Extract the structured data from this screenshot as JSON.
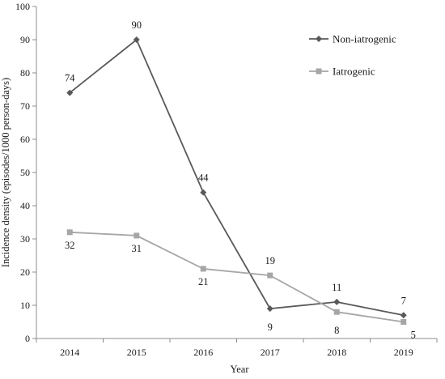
{
  "chart_data": {
    "type": "line",
    "xlabel": "Year",
    "ylabel": "Incidence density (episodes/1000 person-days)",
    "categories": [
      "2014",
      "2015",
      "2016",
      "2017",
      "2018",
      "2019"
    ],
    "ylim": [
      0,
      100
    ],
    "yticks": [
      "0",
      "10",
      "20",
      "30",
      "40",
      "50",
      "60",
      "70",
      "80",
      "90",
      "100"
    ],
    "grid": false,
    "legend": "right",
    "series": [
      {
        "name": "Non-iatrogenic",
        "values": [
          74,
          90,
          44,
          9,
          11,
          7
        ],
        "labels": [
          "74",
          "90",
          "44",
          "9",
          "11",
          "7"
        ],
        "color": "#595959",
        "marker": "diamond"
      },
      {
        "name": "Iatrogenic",
        "values": [
          32,
          31,
          21,
          19,
          8,
          5
        ],
        "labels": [
          "32",
          "31",
          "21",
          "19",
          "8",
          "5"
        ],
        "color": "#a6a6a6",
        "marker": "square"
      }
    ]
  }
}
